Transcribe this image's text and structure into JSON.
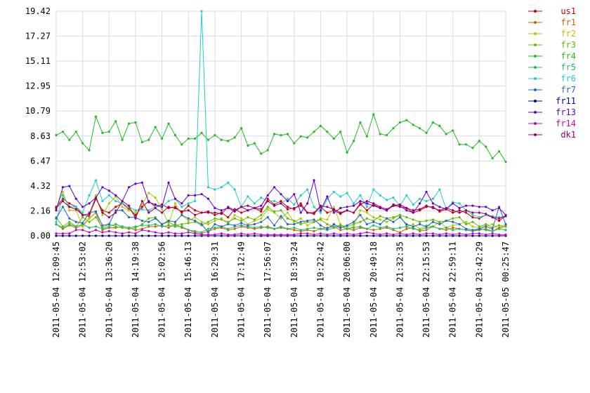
{
  "chart_data": {
    "type": "line",
    "categories": [
      "2011-05-04 12:09:45",
      null,
      null,
      null,
      "2011-05-04 12:53:02",
      null,
      null,
      null,
      "2011-05-04 13:36:20",
      null,
      null,
      null,
      "2011-05-04 14:19:38",
      null,
      null,
      null,
      "2011-05-04 15:02:56",
      null,
      null,
      null,
      "2011-05-04 15:46:13",
      null,
      null,
      null,
      "2011-05-04 16:29:31",
      null,
      null,
      null,
      "2011-05-04 17:12:49",
      null,
      null,
      null,
      "2011-05-04 17:56:07",
      null,
      null,
      null,
      "2011-05-04 18:39:24",
      null,
      null,
      null,
      "2011-05-04 19:22:42",
      null,
      null,
      null,
      "2011-05-04 20:06:00",
      null,
      null,
      null,
      "2011-05-04 20:49:18",
      null,
      null,
      null,
      "2011-05-04 21:32:35",
      null,
      null,
      null,
      "2011-05-04 22:15:53",
      null,
      null,
      null,
      "2011-05-04 22:59:11",
      null,
      null,
      null,
      "2011-05-04 23:42:29",
      null,
      null,
      null,
      "2011-05-05 00:25:47"
    ],
    "ylim": [
      0,
      19.42
    ],
    "yticks": [
      {
        "value": 0,
        "label": "0.00"
      },
      2.16,
      4.32,
      6.47,
      8.63,
      10.79,
      12.95,
      15.11,
      17.27,
      19.42
    ],
    "grid": true,
    "legend": "right",
    "series": [
      {
        "name": "us1",
        "color": "#cc0000",
        "values": [
          2.5,
          3.2,
          2.8,
          2.5,
          1.8,
          1.7,
          3.2,
          2.2,
          2.0,
          2.5,
          2.8,
          2.3,
          1.8,
          2.5,
          3.0,
          2.5,
          2.7,
          2.4,
          2.5,
          2.0,
          2.6,
          2.2,
          2.0,
          2.1,
          1.8,
          2.0,
          1.6,
          2.3,
          2.0,
          2.2,
          2.4,
          2.1,
          3.2,
          2.7,
          3.0,
          2.5,
          2.3,
          2.8,
          2.0,
          1.9,
          2.5,
          2.0,
          2.2,
          1.9,
          2.2,
          2.0,
          2.8,
          2.2,
          2.7,
          2.4,
          2.2,
          2.6,
          2.5,
          2.4,
          2.0,
          2.2,
          2.5,
          2.5,
          2.1,
          2.3,
          2.0,
          2.2,
          2.0,
          1.6,
          1.5,
          1.8,
          1.6,
          1.3,
          1.7
        ]
      },
      {
        "name": "fr1",
        "color": "#cc6600",
        "values": [
          1.0,
          0.6,
          0.9,
          0.7,
          0.9,
          1.5,
          2.0,
          0.5,
          0.7,
          0.7,
          0.8,
          0.7,
          0.5,
          0.6,
          0.8,
          0.8,
          0.9,
          0.7,
          1.0,
          0.7,
          0.5,
          0.3,
          0.2,
          0.4,
          0.6,
          0.7,
          0.5,
          0.6,
          0.8,
          0.7,
          0.6,
          0.7,
          0.8,
          0.6,
          0.7,
          0.6,
          0.5,
          0.4,
          0.5,
          0.4,
          0.6,
          0.7,
          0.8,
          0.5,
          0.6,
          0.5,
          0.7,
          0.6,
          0.5,
          0.6,
          0.7,
          0.5,
          0.3,
          0.6,
          0.7,
          0.4,
          0.5,
          0.8,
          0.6,
          0.5,
          0.7,
          0.6,
          0.5,
          0.4,
          0.5,
          0.6,
          0.4,
          0.7,
          0.9
        ]
      },
      {
        "name": "fr2",
        "color": "#aacc00",
        "values": [
          2.3,
          3.8,
          2.2,
          2.2,
          0.8,
          1.5,
          3.5,
          1.8,
          2.8,
          3.4,
          2.5,
          2.2,
          2.0,
          2.7,
          3.7,
          3.3,
          2.3,
          1.0,
          2.8,
          1.8,
          1.3,
          1.6,
          1.2,
          1.0,
          1.3,
          1.5,
          1.0,
          1.8,
          1.5,
          1.0,
          1.3,
          1.5,
          2.3,
          2.0,
          1.5,
          2.0,
          1.2,
          1.5,
          0.9,
          1.2,
          1.5,
          1.4,
          2.5,
          1.0,
          0.6,
          0.8,
          2.2,
          2.0,
          1.6,
          1.4,
          1.2,
          1.5,
          1.8,
          0.8,
          1.0,
          0.6,
          0.9,
          0.8,
          1.2,
          0.7,
          0.9,
          1.0,
          1.2,
          0.8,
          0.7,
          0.9,
          1.0,
          0.6,
          0.8
        ]
      },
      {
        "name": "fr3",
        "color": "#66bb00",
        "values": [
          1.6,
          0.8,
          1.2,
          0.8,
          1.6,
          1.2,
          1.6,
          0.7,
          1.0,
          0.8,
          0.7,
          0.6,
          0.7,
          1.0,
          1.5,
          1.6,
          1.0,
          1.2,
          0.9,
          1.0,
          1.1,
          1.2,
          0.9,
          1.2,
          1.5,
          1.4,
          1.2,
          1.5,
          1.3,
          1.6,
          1.4,
          1.8,
          2.5,
          2.1,
          2.2,
          1.5,
          1.3,
          1.0,
          1.2,
          1.2,
          1.4,
          1.0,
          0.8,
          0.9,
          0.8,
          1.0,
          1.2,
          1.5,
          1.3,
          1.7,
          1.5,
          1.6,
          1.8,
          1.6,
          1.4,
          1.2,
          1.3,
          1.4,
          1.2,
          1.3,
          1.5,
          1.6,
          1.0,
          1.2,
          0.8,
          1.0,
          0.7,
          0.9,
          0.8
        ]
      },
      {
        "name": "fr4",
        "color": "#22bb22",
        "values": [
          8.7,
          9.0,
          8.3,
          9.0,
          8.0,
          7.4,
          10.3,
          8.9,
          9.0,
          9.9,
          8.3,
          9.7,
          9.8,
          8.1,
          8.3,
          9.4,
          8.4,
          9.7,
          8.7,
          7.9,
          8.4,
          8.4,
          8.9,
          8.3,
          8.7,
          8.3,
          8.2,
          8.5,
          9.3,
          7.8,
          8.0,
          7.1,
          7.4,
          8.8,
          8.7,
          8.8,
          8.0,
          8.6,
          8.5,
          9.0,
          9.5,
          9.0,
          8.4,
          9.0,
          7.2,
          8.2,
          9.8,
          8.6,
          10.5,
          8.8,
          8.7,
          9.3,
          9.8,
          10.0,
          9.6,
          9.3,
          8.9,
          9.8,
          9.5,
          8.8,
          9.1,
          7.9,
          7.9,
          7.6,
          8.2,
          7.7,
          6.7,
          7.3,
          6.4
        ]
      },
      {
        "name": "fr5",
        "color": "#22bb66",
        "values": [
          1.0,
          0.7,
          1.0,
          0.8,
          1.0,
          0.7,
          0.8,
          0.6,
          0.8,
          1.0,
          0.8,
          0.7,
          0.8,
          0.9,
          0.9,
          1.0,
          0.8,
          0.9,
          0.8,
          0.8,
          0.5,
          0.4,
          0.3,
          0.6,
          0.7,
          0.8,
          0.6,
          0.8,
          0.9,
          0.8,
          0.7,
          0.8,
          0.7,
          0.6,
          0.8,
          0.6,
          0.7,
          0.5,
          0.6,
          0.7,
          0.6,
          0.5,
          0.7,
          0.8,
          0.6,
          0.7,
          0.8,
          0.6,
          0.9,
          0.7,
          0.8,
          0.6,
          0.7,
          0.8,
          0.6,
          0.5,
          0.7,
          0.8,
          0.6,
          0.7,
          0.5,
          0.6,
          0.5,
          0.4,
          0.6,
          0.5,
          0.4,
          0.6,
          0.5
        ]
      },
      {
        "name": "fr6",
        "color": "#22cccc",
        "values": [
          1.2,
          3.5,
          2.5,
          2.5,
          2.0,
          3.5,
          4.8,
          3.0,
          3.5,
          3.0,
          2.8,
          2.5,
          2.2,
          2.3,
          2.2,
          2.5,
          2.5,
          3.0,
          3.2,
          2.5,
          2.8,
          3.0,
          19.42,
          4.2,
          4.0,
          4.2,
          4.6,
          4.0,
          2.5,
          3.4,
          2.8,
          3.3,
          3.0,
          3.0,
          2.8,
          3.2,
          2.7,
          3.5,
          4.0,
          2.5,
          2.0,
          3.2,
          3.8,
          3.4,
          3.7,
          2.8,
          3.5,
          2.5,
          4.0,
          3.5,
          3.1,
          3.3,
          2.6,
          3.5,
          2.7,
          3.2,
          3.0,
          3.2,
          4.0,
          2.3,
          2.9,
          2.8,
          2.2,
          1.8,
          1.6,
          1.8,
          1.7,
          1.6,
          1.7
        ]
      },
      {
        "name": "fr7",
        "color": "#2266cc",
        "values": [
          1.5,
          2.5,
          1.5,
          1.2,
          1.1,
          2.0,
          2.1,
          0.9,
          1.0,
          2.2,
          2.2,
          1.6,
          1.6,
          1.3,
          1.2,
          1.5,
          1.0,
          1.3,
          1.2,
          1.8,
          1.5,
          1.3,
          1.0,
          0.3,
          1.0,
          0.8,
          1.0,
          0.9,
          1.1,
          0.9,
          1.0,
          1.2,
          1.6,
          0.9,
          1.7,
          1.0,
          1.0,
          1.2,
          1.3,
          1.4,
          0.9,
          0.6,
          1.0,
          0.7,
          0.9,
          1.2,
          1.8,
          1.0,
          1.2,
          1.0,
          1.5,
          1.2,
          1.6,
          1.0,
          0.8,
          1.0,
          0.8,
          1.2,
          1.0,
          1.3,
          1.2,
          1.0,
          0.6,
          0.5,
          0.6,
          0.8,
          0.6,
          2.5,
          1.0
        ]
      },
      {
        "name": "fr11",
        "color": "#000099",
        "values": [
          0,
          0,
          0,
          0,
          0,
          0,
          0,
          0,
          0,
          0,
          0,
          0,
          0,
          0,
          0,
          0,
          0,
          0,
          0,
          0,
          0,
          0,
          0,
          0,
          0,
          0,
          0,
          0,
          0,
          0,
          0,
          0,
          0,
          0,
          0,
          0,
          0,
          0,
          0,
          0,
          0,
          0,
          0,
          0,
          0,
          0,
          0,
          0,
          0,
          0,
          0,
          0,
          0,
          0,
          0,
          0,
          0,
          0,
          0,
          0,
          0,
          0,
          0,
          0,
          0,
          0,
          0,
          0,
          0
        ]
      },
      {
        "name": "fr13",
        "color": "#6600cc",
        "values": [
          2.2,
          4.2,
          4.3,
          3.2,
          2.5,
          2.8,
          3.3,
          4.2,
          3.9,
          3.5,
          3.0,
          4.2,
          4.5,
          4.6,
          2.9,
          2.7,
          2.5,
          4.6,
          3.2,
          2.8,
          3.5,
          3.5,
          3.6,
          3.2,
          2.4,
          2.2,
          2.4,
          2.1,
          2.5,
          2.2,
          2.4,
          2.6,
          3.5,
          4.2,
          3.6,
          3.0,
          3.6,
          2.0,
          2.8,
          4.8,
          2.2,
          3.4,
          2.0,
          2.4,
          2.5,
          2.6,
          3.0,
          2.8,
          2.6,
          2.4,
          2.2,
          2.7,
          2.6,
          2.2,
          2.0,
          2.8,
          3.8,
          2.8,
          2.5,
          2.3,
          2.8,
          2.4,
          2.6,
          2.6,
          2.5,
          2.5,
          2.2,
          2.4,
          1.8
        ]
      },
      {
        "name": "fr14",
        "color": "#cc00cc",
        "values": [
          0.2,
          0.2,
          0.2,
          0.5,
          0.5,
          0.3,
          0.5,
          0.3,
          0.4,
          0.3,
          0.2,
          0.3,
          0.2,
          0.5,
          0.4,
          0.3,
          0.2,
          0.3,
          0.2,
          0.2,
          0.3,
          0.2,
          0.1,
          0.1,
          0.1,
          0.2,
          0.1,
          0.1,
          0.2,
          0.1,
          0.2,
          0.1,
          0.1,
          0.1,
          0.1,
          0.1,
          0.1,
          0.2,
          0.2,
          0.1,
          0.2,
          0.1,
          0.2,
          0.1,
          0.2,
          0.1,
          0.2,
          0.3,
          0.2,
          0.1,
          0.2,
          0.1,
          0.2,
          0.1,
          0.2,
          0.1,
          0.2,
          0.2,
          0.1,
          0.2,
          0.1,
          0.2,
          0.1,
          0.2,
          0.2,
          0.1,
          0.2,
          0.1,
          0.1
        ]
      },
      {
        "name": "dk1",
        "color": "#990066",
        "values": [
          2.4,
          3.0,
          2.5,
          2.3,
          1.8,
          1.9,
          3.3,
          2.0,
          1.6,
          2.0,
          3.0,
          2.6,
          1.5,
          3.0,
          2.0,
          2.4,
          2.0,
          2.5,
          2.4,
          2.1,
          2.2,
          1.8,
          2.0,
          2.0,
          2.0,
          1.9,
          2.5,
          2.2,
          2.5,
          2.6,
          2.4,
          2.3,
          3.0,
          2.6,
          2.8,
          2.3,
          2.4,
          2.6,
          2.0,
          2.0,
          2.6,
          2.5,
          2.3,
          2.0,
          2.2,
          2.0,
          2.7,
          3.0,
          2.8,
          2.5,
          2.3,
          2.6,
          2.7,
          2.4,
          2.2,
          2.3,
          2.6,
          2.4,
          2.2,
          2.4,
          2.2,
          2.0,
          2.2,
          2.0,
          2.0,
          1.9,
          1.6,
          1.5,
          1.7
        ]
      }
    ]
  }
}
